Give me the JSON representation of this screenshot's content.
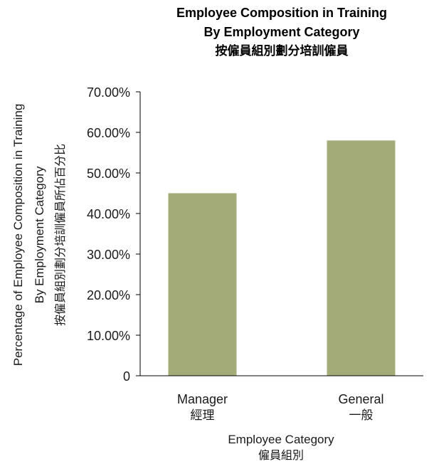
{
  "chart_data": {
    "type": "bar",
    "title_lines": [
      "Employee Composition in Training",
      "By Employment Category",
      "按僱員組別劃分培訓僱員"
    ],
    "ylabel_lines": [
      "Percentage of Employee Composition in Training",
      "By Employment Category",
      "按僱員組別劃分培訓僱員所佔百分比"
    ],
    "xlabel_lines": [
      "Employee Category",
      "僱員組別"
    ],
    "categories": [
      [
        "Manager",
        "經理"
      ],
      [
        "General",
        "一般"
      ]
    ],
    "values": [
      0.45,
      0.58
    ],
    "ylim": [
      0,
      0.7
    ],
    "yticks": [
      0,
      0.1,
      0.2,
      0.3,
      0.4,
      0.5,
      0.6,
      0.7
    ],
    "ytick_labels": [
      "0",
      "10.00%",
      "20.00%",
      "30.00%",
      "40.00%",
      "50.00%",
      "60.00%",
      "70.00%"
    ],
    "bar_color": "#a3ab78",
    "axis_color": "#000000",
    "grid": false
  }
}
